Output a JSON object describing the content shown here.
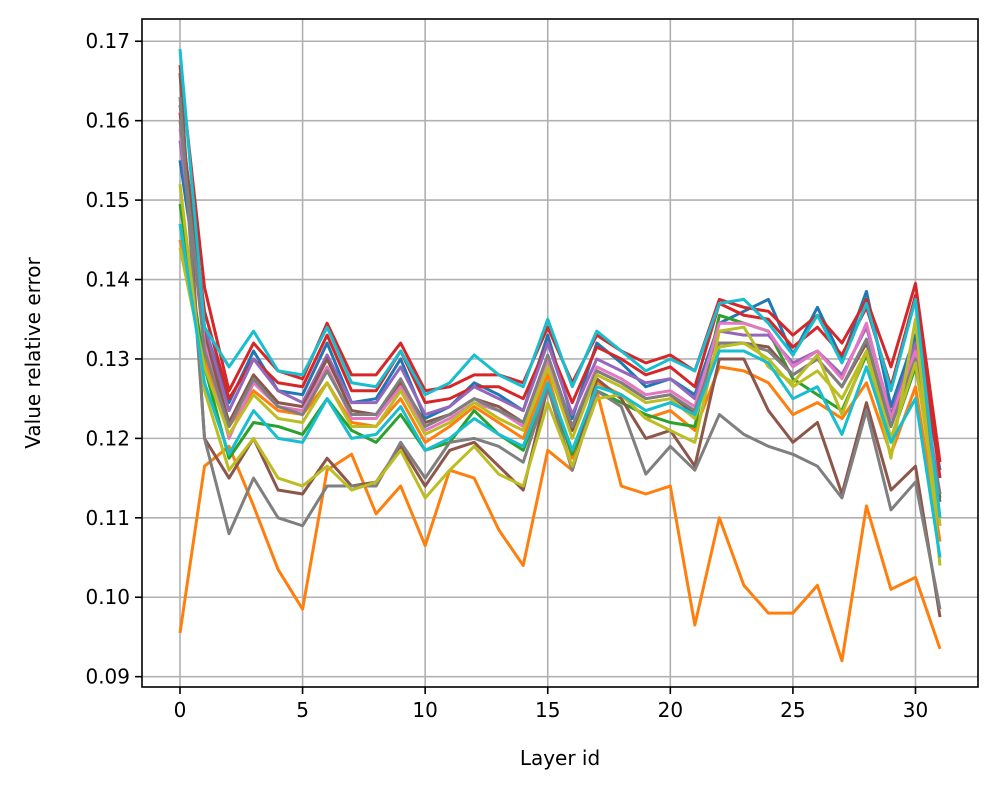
{
  "chart_data": {
    "type": "line",
    "title": "",
    "xlabel": "Layer id",
    "ylabel": "Value relative error",
    "xlim": [
      -1.55,
      32.55
    ],
    "ylim": [
      0.0887,
      0.1728
    ],
    "xticks": [
      0,
      5,
      10,
      15,
      20,
      25,
      30
    ],
    "yticks": [
      0.09,
      0.1,
      0.11,
      0.12,
      0.13,
      0.14,
      0.15,
      0.16,
      0.17
    ],
    "ytick_labels": [
      "0.09",
      "0.10",
      "0.11",
      "0.12",
      "0.13",
      "0.14",
      "0.15",
      "0.16",
      "0.17"
    ],
    "grid": true,
    "x": [
      0,
      1,
      2,
      3,
      4,
      5,
      6,
      7,
      8,
      9,
      10,
      11,
      12,
      13,
      14,
      15,
      16,
      17,
      18,
      19,
      20,
      21,
      22,
      23,
      24,
      25,
      26,
      27,
      28,
      29,
      30,
      31
    ],
    "series": [
      {
        "color": "#1f77b4",
        "values": [
          0.155,
          0.134,
          0.1245,
          0.131,
          0.126,
          0.1255,
          0.132,
          0.1245,
          0.125,
          0.13,
          0.1225,
          0.124,
          0.127,
          0.1255,
          0.1235,
          0.133,
          0.1225,
          0.132,
          0.1295,
          0.1265,
          0.1275,
          0.1255,
          0.1345,
          0.136,
          0.1375,
          0.1305,
          0.1365,
          0.13,
          0.1385,
          0.124,
          0.133,
          0.116
        ]
      },
      {
        "color": "#ff7f0e",
        "values": [
          0.0955,
          0.1165,
          0.119,
          0.1115,
          0.1035,
          0.0985,
          0.116,
          0.118,
          0.1105,
          0.114,
          0.1065,
          0.116,
          0.115,
          0.1085,
          0.104,
          0.1185,
          0.116,
          0.126,
          0.114,
          0.113,
          0.114,
          0.0965,
          0.11,
          0.1015,
          0.098,
          0.098,
          0.1015,
          0.092,
          0.1115,
          0.101,
          0.1025,
          0.0935
        ]
      },
      {
        "color": "#ff7f0e",
        "values": [
          0.145,
          0.13,
          0.1215,
          0.126,
          0.1235,
          0.123,
          0.127,
          0.122,
          0.1215,
          0.125,
          0.1195,
          0.1215,
          0.124,
          0.122,
          0.12,
          0.128,
          0.1175,
          0.127,
          0.1255,
          0.1225,
          0.1235,
          0.121,
          0.129,
          0.1285,
          0.127,
          0.123,
          0.1245,
          0.1225,
          0.127,
          0.118,
          0.1265,
          0.107
        ]
      },
      {
        "color": "#2ca02c",
        "values": [
          0.1495,
          0.129,
          0.1175,
          0.122,
          0.1215,
          0.1205,
          0.125,
          0.121,
          0.1195,
          0.123,
          0.1185,
          0.1195,
          0.1235,
          0.1205,
          0.1185,
          0.1265,
          0.118,
          0.126,
          0.1245,
          0.123,
          0.122,
          0.1215,
          0.1355,
          0.1345,
          0.1335,
          0.1275,
          0.1255,
          0.1235,
          0.1305,
          0.12,
          0.129,
          0.1125
        ]
      },
      {
        "color": "#d62728",
        "values": [
          0.167,
          0.139,
          0.126,
          0.132,
          0.1285,
          0.1275,
          0.1345,
          0.128,
          0.128,
          0.132,
          0.126,
          0.1265,
          0.128,
          0.128,
          0.127,
          0.134,
          0.127,
          0.133,
          0.131,
          0.1295,
          0.1305,
          0.1285,
          0.1375,
          0.1365,
          0.136,
          0.133,
          0.1355,
          0.132,
          0.1375,
          0.129,
          0.1395,
          0.117
        ]
      },
      {
        "color": "#d62728",
        "values": [
          0.161,
          0.136,
          0.125,
          0.13,
          0.127,
          0.1265,
          0.133,
          0.126,
          0.126,
          0.131,
          0.1245,
          0.125,
          0.1265,
          0.1265,
          0.125,
          0.132,
          0.1245,
          0.1315,
          0.13,
          0.128,
          0.129,
          0.1265,
          0.137,
          0.1355,
          0.135,
          0.1315,
          0.134,
          0.1305,
          0.1365,
          0.1265,
          0.138,
          0.115
        ]
      },
      {
        "color": "#9467bd",
        "values": [
          0.1575,
          0.134,
          0.1235,
          0.13,
          0.126,
          0.1245,
          0.1305,
          0.1245,
          0.1245,
          0.129,
          0.123,
          0.124,
          0.1265,
          0.125,
          0.1235,
          0.132,
          0.123,
          0.13,
          0.1285,
          0.127,
          0.1275,
          0.125,
          0.1335,
          0.133,
          0.133,
          0.1295,
          0.131,
          0.128,
          0.134,
          0.123,
          0.132,
          0.113
        ]
      },
      {
        "color": "#8c564b",
        "values": [
          0.166,
          0.12,
          0.115,
          0.12,
          0.1135,
          0.113,
          0.1175,
          0.114,
          0.1145,
          0.119,
          0.114,
          0.1185,
          0.1195,
          0.1165,
          0.1135,
          0.1265,
          0.116,
          0.1275,
          0.125,
          0.12,
          0.121,
          0.1165,
          0.13,
          0.13,
          0.1235,
          0.1195,
          0.122,
          0.113,
          0.1245,
          0.1135,
          0.1165,
          0.0975
        ]
      },
      {
        "color": "#8c564b",
        "values": [
          0.162,
          0.133,
          0.122,
          0.128,
          0.1245,
          0.124,
          0.13,
          0.1235,
          0.123,
          0.127,
          0.122,
          0.123,
          0.125,
          0.124,
          0.122,
          0.13,
          0.121,
          0.1285,
          0.127,
          0.125,
          0.1255,
          0.123,
          0.132,
          0.132,
          0.1315,
          0.128,
          0.13,
          0.1265,
          0.132,
          0.1215,
          0.1305,
          0.112
        ]
      },
      {
        "color": "#e377c2",
        "values": [
          0.159,
          0.132,
          0.12,
          0.127,
          0.124,
          0.1235,
          0.129,
          0.1225,
          0.1225,
          0.1265,
          0.121,
          0.1225,
          0.1245,
          0.1235,
          0.1215,
          0.13,
          0.1215,
          0.129,
          0.1275,
          0.1255,
          0.126,
          0.124,
          0.1345,
          0.1345,
          0.1335,
          0.129,
          0.131,
          0.1275,
          0.1345,
          0.1225,
          0.131,
          0.109
        ]
      },
      {
        "color": "#7f7f7f",
        "values": [
          0.163,
          0.12,
          0.108,
          0.115,
          0.11,
          0.109,
          0.114,
          0.114,
          0.114,
          0.1195,
          0.115,
          0.1195,
          0.12,
          0.119,
          0.117,
          0.1265,
          0.116,
          0.126,
          0.124,
          0.1155,
          0.119,
          0.116,
          0.123,
          0.1205,
          0.119,
          0.118,
          0.1165,
          0.1125,
          0.1235,
          0.111,
          0.1145,
          0.0985
        ]
      },
      {
        "color": "#7f7f7f",
        "values": [
          0.16,
          0.131,
          0.1215,
          0.1275,
          0.124,
          0.123,
          0.1285,
          0.123,
          0.123,
          0.1275,
          0.1215,
          0.123,
          0.125,
          0.1235,
          0.122,
          0.1305,
          0.1215,
          0.1285,
          0.127,
          0.125,
          0.1255,
          0.1235,
          0.132,
          0.132,
          0.131,
          0.128,
          0.13,
          0.1265,
          0.1325,
          0.1215,
          0.13,
          0.113
        ]
      },
      {
        "color": "#bcbd22",
        "values": [
          0.152,
          0.126,
          0.116,
          0.12,
          0.115,
          0.114,
          0.1165,
          0.1135,
          0.1145,
          0.1185,
          0.1125,
          0.116,
          0.119,
          0.1155,
          0.114,
          0.1245,
          0.1165,
          0.125,
          0.1255,
          0.1225,
          0.121,
          0.1195,
          0.1335,
          0.134,
          0.129,
          0.127,
          0.1305,
          0.123,
          0.131,
          0.1175,
          0.135,
          0.104
        ]
      },
      {
        "color": "#bcbd22",
        "values": [
          0.144,
          0.129,
          0.1205,
          0.1255,
          0.1225,
          0.122,
          0.127,
          0.1215,
          0.1215,
          0.126,
          0.1205,
          0.122,
          0.1245,
          0.1225,
          0.121,
          0.129,
          0.12,
          0.128,
          0.1265,
          0.1245,
          0.125,
          0.1225,
          0.1315,
          0.132,
          0.13,
          0.1265,
          0.1285,
          0.125,
          0.131,
          0.12,
          0.1295,
          0.109
        ]
      },
      {
        "color": "#17becf",
        "values": [
          0.169,
          0.134,
          0.129,
          0.1335,
          0.1285,
          0.128,
          0.134,
          0.127,
          0.1265,
          0.131,
          0.1255,
          0.127,
          0.1305,
          0.128,
          0.1265,
          0.135,
          0.1265,
          0.1335,
          0.131,
          0.1285,
          0.13,
          0.1285,
          0.137,
          0.1375,
          0.1345,
          0.1305,
          0.1355,
          0.1295,
          0.137,
          0.126,
          0.1375,
          0.11
        ]
      },
      {
        "color": "#17becf",
        "values": [
          0.147,
          0.127,
          0.118,
          0.1235,
          0.12,
          0.1195,
          0.125,
          0.12,
          0.1205,
          0.124,
          0.1185,
          0.12,
          0.1225,
          0.1205,
          0.119,
          0.127,
          0.1185,
          0.1265,
          0.1255,
          0.1235,
          0.1245,
          0.123,
          0.131,
          0.131,
          0.1295,
          0.125,
          0.1265,
          0.1205,
          0.129,
          0.1195,
          0.125,
          0.105
        ]
      }
    ]
  }
}
